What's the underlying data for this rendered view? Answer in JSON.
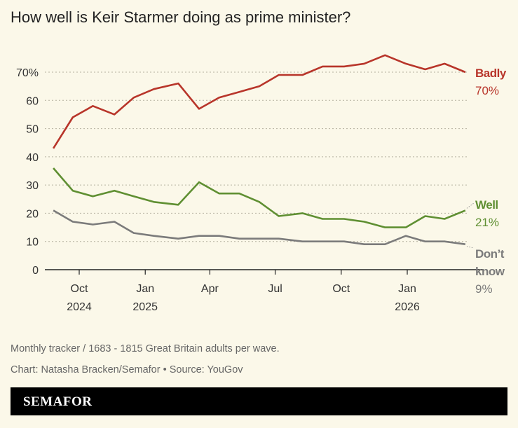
{
  "title": "How well is Keir Starmer doing as prime minister?",
  "note": "Monthly tracker / 1683 - 1815 Great Britain adults per wave.",
  "credit": "Chart: Natasha Bracken/Semafor • Source: YouGov",
  "logo": "SEMAFOR",
  "chart_data": {
    "type": "line",
    "title": "How well is Keir Starmer doing as prime minister?",
    "ylim": [
      0,
      70
    ],
    "yticks": [
      0,
      10,
      20,
      30,
      40,
      50,
      60,
      70
    ],
    "ytick_labels": [
      "0",
      "10",
      "20",
      "30",
      "40",
      "50",
      "60",
      "70%"
    ],
    "xticks": [
      {
        "date": "2024-10-01",
        "label": [
          "Oct",
          "2024"
        ]
      },
      {
        "date": "2025-01-01",
        "label": [
          "Jan",
          "2025"
        ]
      },
      {
        "date": "2025-04-01",
        "label": [
          "Apr"
        ]
      },
      {
        "date": "2025-07-01",
        "label": [
          "Jul"
        ]
      },
      {
        "date": "2025-10-01",
        "label": [
          "Oct"
        ]
      },
      {
        "date": "2026-01-01",
        "label": [
          "Jan",
          "2026"
        ]
      }
    ],
    "grid": true,
    "x": [
      "2024-08-26",
      "2024-09-22",
      "2024-10-20",
      "2024-11-19",
      "2024-12-16",
      "2025-01-13",
      "2025-02-16",
      "2025-03-17",
      "2025-04-14",
      "2025-05-12",
      "2025-06-09",
      "2025-07-06",
      "2025-08-08",
      "2025-09-05",
      "2025-10-05",
      "2025-11-02",
      "2025-12-01",
      "2025-12-30",
      "2026-01-26",
      "2026-02-22",
      "2026-03-23"
    ],
    "series": [
      {
        "name": "Badly",
        "final_label": "70%",
        "color": "#b8352a",
        "values": [
          43,
          54,
          58,
          55,
          61,
          64,
          66,
          57,
          61,
          63,
          65,
          69,
          69,
          72,
          72,
          73,
          76,
          73,
          71,
          73,
          70
        ]
      },
      {
        "name": "Well",
        "final_label": "21%",
        "color": "#5f8f32",
        "values": [
          36,
          28,
          26,
          28,
          26,
          24,
          23,
          31,
          27,
          27,
          24,
          19,
          20,
          18,
          18,
          17,
          15,
          15,
          19,
          18,
          21
        ]
      },
      {
        "name": "Don’t know",
        "final_label": "9%",
        "color": "#7b7b7b",
        "values": [
          21,
          17,
          16,
          17,
          13,
          12,
          11,
          12,
          12,
          11,
          11,
          11,
          10,
          10,
          10,
          9,
          9,
          12,
          10,
          10,
          9
        ]
      }
    ]
  }
}
